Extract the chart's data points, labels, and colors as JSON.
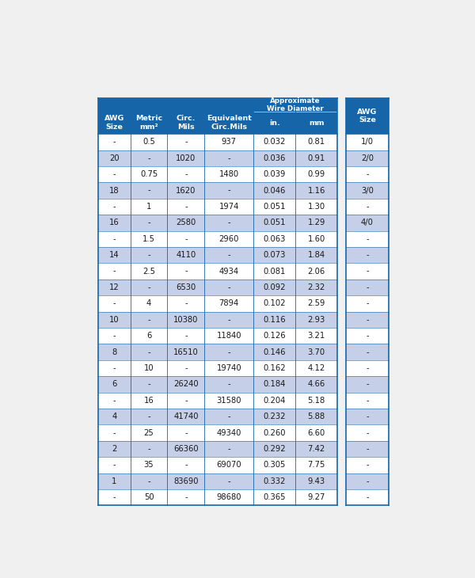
{
  "header_bg": "#1565a8",
  "header_text_color": "#ffffff",
  "row_even_bg": "#ffffff",
  "row_odd_bg": "#c5cfe8",
  "border_color": "#1565a8",
  "text_color": "#1a1a1a",
  "rows": [
    [
      "-",
      "0.5",
      "-",
      "937",
      "0.032",
      "0.81",
      "1/0"
    ],
    [
      "20",
      "-",
      "1020",
      "-",
      "0.036",
      "0.91",
      "2/0"
    ],
    [
      "-",
      "0.75",
      "-",
      "1480",
      "0.039",
      "0.99",
      "-"
    ],
    [
      "18",
      "-",
      "1620",
      "-",
      "0.046",
      "1.16",
      "3/0"
    ],
    [
      "-",
      "1",
      "-",
      "1974",
      "0.051",
      "1.30",
      "-"
    ],
    [
      "16",
      "-",
      "2580",
      "-",
      "0.051",
      "1.29",
      "4/0"
    ],
    [
      "-",
      "1.5",
      "-",
      "2960",
      "0.063",
      "1.60",
      "-"
    ],
    [
      "14",
      "-",
      "4110",
      "-",
      "0.073",
      "1.84",
      "-"
    ],
    [
      "-",
      "2.5",
      "-",
      "4934",
      "0.081",
      "2.06",
      "-"
    ],
    [
      "12",
      "-",
      "6530",
      "-",
      "0.092",
      "2.32",
      "-"
    ],
    [
      "-",
      "4",
      "-",
      "7894",
      "0.102",
      "2.59",
      "-"
    ],
    [
      "10",
      "-",
      "10380",
      "-",
      "0.116",
      "2.93",
      "-"
    ],
    [
      "-",
      "6",
      "-",
      "11840",
      "0.126",
      "3.21",
      "-"
    ],
    [
      "8",
      "-",
      "16510",
      "-",
      "0.146",
      "3.70",
      "-"
    ],
    [
      "-",
      "10",
      "-",
      "19740",
      "0.162",
      "4.12",
      "-"
    ],
    [
      "6",
      "-",
      "26240",
      "-",
      "0.184",
      "4.66",
      "-"
    ],
    [
      "-",
      "16",
      "-",
      "31580",
      "0.204",
      "5.18",
      "-"
    ],
    [
      "4",
      "-",
      "41740",
      "-",
      "0.232",
      "5.88",
      "-"
    ],
    [
      "-",
      "25",
      "-",
      "49340",
      "0.260",
      "6.60",
      "-"
    ],
    [
      "2",
      "-",
      "66360",
      "-",
      "0.292",
      "7.42",
      "-"
    ],
    [
      "-",
      "35",
      "-",
      "69070",
      "0.305",
      "7.75",
      "-"
    ],
    [
      "1",
      "-",
      "83690",
      "-",
      "0.332",
      "9.43",
      "-"
    ],
    [
      "-",
      "50",
      "-",
      "98680",
      "0.365",
      "9.27",
      "-"
    ]
  ],
  "fig_width": 6.0,
  "fig_height": 7.3,
  "dpi": 100
}
